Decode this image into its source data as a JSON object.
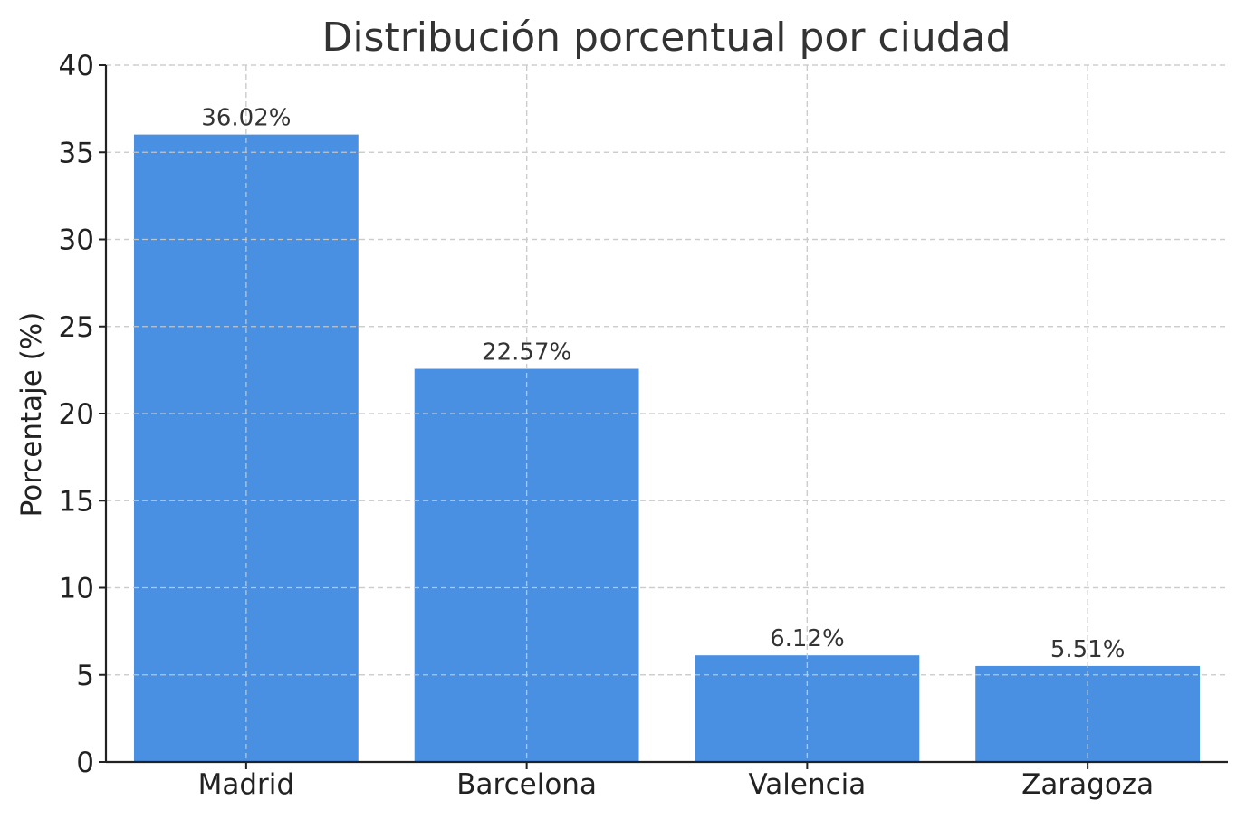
{
  "chart_data": {
    "type": "bar",
    "title": "Distribución porcentual por ciudad",
    "xlabel": "",
    "ylabel": "Porcentaje (%)",
    "categories": [
      "Madrid",
      "Barcelona",
      "Valencia",
      "Zaragoza"
    ],
    "values": [
      36.02,
      22.57,
      6.12,
      5.51
    ],
    "value_labels": [
      "36.02%",
      "22.57%",
      "6.12%",
      "5.51%"
    ],
    "ylim": [
      0,
      40
    ],
    "yticks": [
      0,
      5,
      10,
      15,
      20,
      25,
      30,
      35,
      40
    ],
    "grid": true,
    "bar_color": "#4a90e2"
  }
}
